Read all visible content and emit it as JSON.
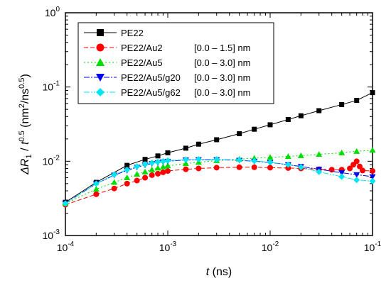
{
  "chart_data": {
    "type": "scatter",
    "x_scale": "log",
    "y_scale": "log",
    "xlim": [
      0.0001,
      0.1
    ],
    "ylim": [
      0.001,
      1
    ],
    "grid": false,
    "legend_position": "top-left",
    "xlabel": {
      "main": "t",
      "unit": " (ns)"
    },
    "ylabel": {
      "delta": "Δ",
      "r": "R",
      "r_sub": "1",
      "slash": " / ",
      "t": "t",
      "t_sup": "0.5",
      "open": " (nm",
      "nm_sup": "2",
      "mid": "/ns",
      "ns_sup": "0.5",
      "close": ")"
    },
    "x_ticks": [
      {
        "value": 0.0001,
        "base": "10",
        "exp": "-4"
      },
      {
        "value": 0.001,
        "base": "10",
        "exp": "-3"
      },
      {
        "value": 0.01,
        "base": "10",
        "exp": "-2"
      },
      {
        "value": 0.1,
        "base": "10",
        "exp": "-1"
      }
    ],
    "y_ticks": [
      {
        "value": 0.001,
        "base": "10",
        "exp": "-3"
      },
      {
        "value": 0.01,
        "base": "10",
        "exp": "-2"
      },
      {
        "value": 0.1,
        "base": "10",
        "exp": "-1"
      },
      {
        "value": 1,
        "base": "10",
        "exp": "0"
      }
    ],
    "series": [
      {
        "name": "PE22",
        "range": "",
        "color": "#000000",
        "marker": "square",
        "dash": "none",
        "x": [
          0.0001,
          0.0002,
          0.0004,
          0.0006,
          0.0008,
          0.001,
          0.0015,
          0.002,
          0.003,
          0.005,
          0.007,
          0.01,
          0.015,
          0.02,
          0.03,
          0.05,
          0.07,
          0.1
        ],
        "y": [
          0.0028,
          0.0052,
          0.0088,
          0.0106,
          0.0118,
          0.013,
          0.015,
          0.017,
          0.0195,
          0.0235,
          0.027,
          0.031,
          0.0365,
          0.041,
          0.048,
          0.058,
          0.066,
          0.084
        ]
      },
      {
        "name": "PE22/Au2",
        "range": "[0.0 – 1.5] nm",
        "color": "#ff0000",
        "marker": "circle",
        "dash": "6,3",
        "x": [
          0.0001,
          0.0002,
          0.0003,
          0.0004,
          0.0005,
          0.0006,
          0.0007,
          0.0008,
          0.0009,
          0.001,
          0.0015,
          0.002,
          0.003,
          0.005,
          0.007,
          0.01,
          0.015,
          0.02,
          0.03,
          0.04,
          0.05,
          0.06,
          0.065,
          0.07,
          0.075,
          0.08,
          0.1
        ],
        "y": [
          0.0026,
          0.0036,
          0.0043,
          0.005,
          0.0055,
          0.006,
          0.0065,
          0.0068,
          0.0071,
          0.0074,
          0.0078,
          0.008,
          0.0082,
          0.0083,
          0.0083,
          0.0082,
          0.0081,
          0.008,
          0.0078,
          0.0077,
          0.0077,
          0.008,
          0.009,
          0.01,
          0.0085,
          0.0075,
          0.0074
        ]
      },
      {
        "name": "PE22/Au5",
        "range": "[0.0 – 3.0] nm",
        "color": "#00dd00",
        "marker": "triangle-up",
        "dash": "2,3",
        "x": [
          0.0001,
          0.0002,
          0.0003,
          0.0004,
          0.0005,
          0.0006,
          0.0007,
          0.0008,
          0.0009,
          0.001,
          0.0015,
          0.002,
          0.003,
          0.005,
          0.007,
          0.01,
          0.015,
          0.02,
          0.03,
          0.05,
          0.07,
          0.1
        ],
        "y": [
          0.0027,
          0.0042,
          0.0052,
          0.006,
          0.0067,
          0.0072,
          0.0077,
          0.0081,
          0.0084,
          0.0087,
          0.0093,
          0.0097,
          0.0102,
          0.0107,
          0.011,
          0.0113,
          0.0116,
          0.0119,
          0.0124,
          0.013,
          0.0136,
          0.0141
        ]
      },
      {
        "name": "PE22/Au5/g20",
        "range": "[0.0 – 3.0] nm",
        "color": "#0000ee",
        "marker": "triangle-down",
        "dash": "8,2,2,2",
        "x": [
          0.0001,
          0.0002,
          0.0003,
          0.0004,
          0.0005,
          0.0006,
          0.0007,
          0.0008,
          0.0009,
          0.001,
          0.0015,
          0.002,
          0.003,
          0.005,
          0.007,
          0.01,
          0.015,
          0.02,
          0.03,
          0.05,
          0.07,
          0.1
        ],
        "y": [
          0.0027,
          0.005,
          0.0065,
          0.0075,
          0.0083,
          0.0089,
          0.0093,
          0.0096,
          0.0098,
          0.01,
          0.0104,
          0.0105,
          0.0105,
          0.0103,
          0.01,
          0.0096,
          0.009,
          0.0085,
          0.0078,
          0.007,
          0.0066,
          0.0062
        ]
      },
      {
        "name": "PE22/Au5/g62",
        "range": "[0.0 – 3.0] nm",
        "color": "#00e5ee",
        "marker": "diamond",
        "dash": "8,2,2,2,2,2",
        "x": [
          0.0001,
          0.0002,
          0.0003,
          0.0004,
          0.0005,
          0.0006,
          0.0007,
          0.0008,
          0.0009,
          0.001,
          0.0015,
          0.002,
          0.003,
          0.005,
          0.007,
          0.01,
          0.015,
          0.02,
          0.03,
          0.05,
          0.07,
          0.1
        ],
        "y": [
          0.0027,
          0.005,
          0.0066,
          0.0077,
          0.0085,
          0.0091,
          0.0095,
          0.0098,
          0.01,
          0.0102,
          0.0105,
          0.0106,
          0.0106,
          0.0104,
          0.0101,
          0.0097,
          0.009,
          0.0083,
          0.0072,
          0.0062,
          0.0056,
          0.0054
        ]
      }
    ]
  }
}
